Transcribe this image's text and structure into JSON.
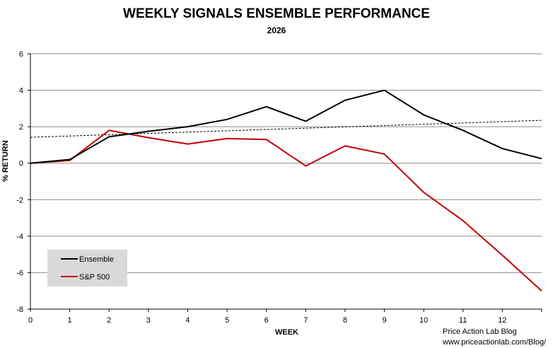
{
  "chart_data": {
    "type": "line",
    "title": "WEEKLY SIGNALS ENSEMBLE PERFORMANCE",
    "subtitle": "2026",
    "xlabel": "WEEK",
    "ylabel": "% RETURN",
    "xlim": [
      0,
      13
    ],
    "ylim": [
      -8,
      6
    ],
    "x_ticks": [
      0,
      1,
      2,
      3,
      4,
      5,
      6,
      7,
      8,
      9,
      10,
      11,
      12
    ],
    "y_ticks": [
      -8,
      -6,
      -4,
      -2,
      0,
      2,
      4,
      6
    ],
    "grid": true,
    "legend_position": "bottom-left",
    "series": [
      {
        "name": "Ensemble",
        "color": "#000000",
        "x": [
          0,
          1,
          2,
          3,
          4,
          5,
          6,
          7,
          8,
          9,
          10,
          11,
          12,
          13
        ],
        "values": [
          0,
          0.2,
          1.45,
          1.75,
          2.0,
          2.4,
          3.1,
          2.3,
          3.45,
          4.0,
          2.65,
          1.8,
          0.8,
          0.25
        ]
      },
      {
        "name": "S&P 500",
        "color": "#c00000",
        "x": [
          0,
          1,
          2,
          3,
          4,
          5,
          6,
          7,
          8,
          9,
          10,
          11,
          12,
          13
        ],
        "values": [
          0,
          0.15,
          1.8,
          1.4,
          1.05,
          1.35,
          1.3,
          -0.15,
          0.95,
          0.5,
          -1.6,
          -3.15,
          -5.05,
          -7.0
        ]
      }
    ],
    "trendline": {
      "style": "dotted",
      "color": "#000000",
      "x": [
        0,
        13
      ],
      "values": [
        1.42,
        2.35
      ]
    }
  },
  "credit": {
    "line1": "Price Action Lab Blog",
    "line2": "www.priceactionlab.com/Blog/"
  }
}
